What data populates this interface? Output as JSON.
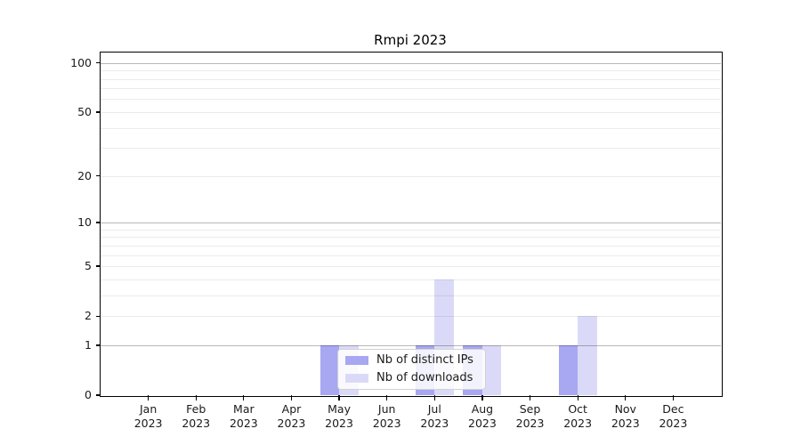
{
  "figure": {
    "title": "Rmpi 2023"
  },
  "chart_data": {
    "type": "bar",
    "title": "Rmpi 2023",
    "months": [
      "Jan",
      "Feb",
      "Mar",
      "Apr",
      "May",
      "Jun",
      "Jul",
      "Aug",
      "Sep",
      "Oct",
      "Nov",
      "Dec"
    ],
    "year": "2023",
    "categories": [
      "Jan 2023",
      "Feb 2023",
      "Mar 2023",
      "Apr 2023",
      "May 2023",
      "Jun 2023",
      "Jul 2023",
      "Aug 2023",
      "Sep 2023",
      "Oct 2023",
      "Nov 2023",
      "Dec 2023"
    ],
    "series": [
      {
        "name": "Nb of distinct IPs",
        "color": "#a7a7f2",
        "values": [
          0,
          0,
          0,
          0,
          1,
          0,
          1,
          1,
          0,
          1,
          0,
          0
        ]
      },
      {
        "name": "Nb of downloads",
        "color": "#dadaf8",
        "values": [
          0,
          0,
          0,
          0,
          1,
          0,
          4,
          1,
          0,
          2,
          0,
          0
        ]
      }
    ],
    "xlabel": "",
    "ylabel": "",
    "yscale": "log1p",
    "ylim": [
      0,
      115
    ],
    "yticks": [
      0,
      1,
      2,
      5,
      10,
      20,
      50,
      100
    ],
    "grid_major": [
      1,
      10,
      100
    ],
    "grid_minor": [
      2,
      3,
      4,
      5,
      6,
      7,
      8,
      9,
      20,
      30,
      40,
      50,
      60,
      70,
      80,
      90
    ],
    "grid": "on",
    "legend_position": "lower center"
  },
  "colors": {
    "background": "#ffffff",
    "spine": "#000000",
    "text": "#1a1a1a",
    "grid_major": "rgba(0,0,0,0.28)",
    "grid_minor": "rgba(0,0,0,0.08)",
    "legend_border": "#d2d2d2"
  }
}
